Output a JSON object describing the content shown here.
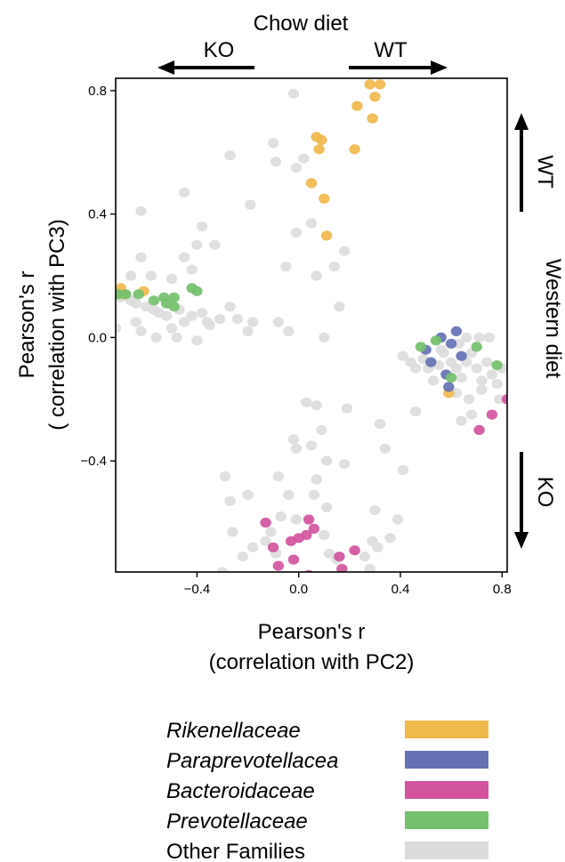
{
  "chart_data": {
    "type": "scatter",
    "xlabel": [
      "Pearson's r",
      "(correlation with PC2)"
    ],
    "ylabel": [
      "Pearson's r",
      "( correlation with PC3)"
    ],
    "xlim": [
      -0.72,
      0.82
    ],
    "ylim": [
      -0.76,
      0.84
    ],
    "x_ticks": [
      -0.4,
      0.0,
      0.4,
      0.8
    ],
    "y_ticks": [
      -0.4,
      0.0,
      0.4,
      0.8
    ],
    "x_tick_labels": [
      "−0.4",
      "0.0",
      "0.4",
      "0.8"
    ],
    "y_tick_labels": [
      "−0.4",
      "0.0",
      "0.4",
      "0.8"
    ],
    "grid": false,
    "legend_position": "bottom",
    "annotations": {
      "top_title": "Chow diet",
      "top_left_arrow_label": "KO",
      "top_right_arrow_label": "WT",
      "right_title": "Western diet",
      "right_up_arrow_label": "WT",
      "right_down_arrow_label": "KO"
    },
    "series": [
      {
        "name": "Rikenellaceae",
        "color": "#F0B94C",
        "italic": true,
        "points": [
          [
            0.28,
            0.82
          ],
          [
            0.32,
            0.82
          ],
          [
            0.3,
            0.78
          ],
          [
            0.23,
            0.75
          ],
          [
            0.29,
            0.71
          ],
          [
            0.07,
            0.65
          ],
          [
            0.09,
            0.64
          ],
          [
            0.08,
            0.61
          ],
          [
            0.22,
            0.61
          ],
          [
            0.05,
            0.5
          ],
          [
            0.1,
            0.45
          ],
          [
            0.11,
            0.33
          ],
          [
            -0.7,
            0.16
          ],
          [
            -0.61,
            0.15
          ],
          [
            -0.69,
            0.14
          ],
          [
            0.59,
            -0.18
          ]
        ]
      },
      {
        "name": "Paraprevotellacea",
        "color": "#6472B4",
        "italic": true,
        "points": [
          [
            0.5,
            -0.04
          ],
          [
            0.56,
            0.0
          ],
          [
            0.62,
            0.02
          ],
          [
            0.6,
            -0.02
          ],
          [
            0.64,
            -0.06
          ],
          [
            0.58,
            -0.12
          ],
          [
            0.59,
            -0.16
          ],
          [
            0.52,
            -0.08
          ]
        ]
      },
      {
        "name": "Bacteroidaceae",
        "color": "#D2549E",
        "italic": true,
        "points": [
          [
            -0.13,
            -0.6
          ],
          [
            0.04,
            -0.59
          ],
          [
            0.06,
            -0.62
          ],
          [
            0.03,
            -0.64
          ],
          [
            0.0,
            -0.65
          ],
          [
            -0.03,
            -0.66
          ],
          [
            -0.1,
            -0.68
          ],
          [
            -0.02,
            -0.72
          ],
          [
            0.16,
            -0.71
          ],
          [
            0.22,
            -0.69
          ],
          [
            -0.08,
            -0.74
          ],
          [
            0.04,
            -0.77
          ],
          [
            0.17,
            -0.75
          ],
          [
            0.76,
            -0.25
          ],
          [
            0.82,
            -0.2
          ],
          [
            0.71,
            -0.3
          ]
        ]
      },
      {
        "name": "Prevotellaceae",
        "color": "#74C06C",
        "italic": true,
        "points": [
          [
            -0.71,
            0.14
          ],
          [
            -0.68,
            0.14
          ],
          [
            -0.63,
            0.14
          ],
          [
            -0.57,
            0.12
          ],
          [
            -0.53,
            0.13
          ],
          [
            -0.52,
            0.11
          ],
          [
            -0.49,
            0.1
          ],
          [
            -0.49,
            0.13
          ],
          [
            -0.42,
            0.16
          ],
          [
            -0.4,
            0.15
          ],
          [
            0.48,
            -0.03
          ],
          [
            0.54,
            -0.01
          ],
          [
            0.6,
            -0.13
          ],
          [
            0.7,
            -0.03
          ],
          [
            0.78,
            -0.09
          ]
        ]
      },
      {
        "name": "Other Families",
        "color": "#DCDCDC",
        "italic": false,
        "points": [
          [
            -0.02,
            0.79
          ],
          [
            -0.1,
            0.63
          ],
          [
            -0.09,
            0.57
          ],
          [
            -0.27,
            0.59
          ],
          [
            -0.19,
            0.43
          ],
          [
            -0.45,
            0.47
          ],
          [
            -0.62,
            0.41
          ],
          [
            -0.38,
            0.36
          ],
          [
            -0.4,
            0.3
          ],
          [
            -0.33,
            0.3
          ],
          [
            -0.45,
            0.26
          ],
          [
            -0.62,
            0.26
          ],
          [
            -0.42,
            0.22
          ],
          [
            -0.5,
            0.19
          ],
          [
            -0.66,
            0.2
          ],
          [
            -0.58,
            0.2
          ],
          [
            -0.7,
            0.13
          ],
          [
            -0.66,
            0.12
          ],
          [
            -0.64,
            0.11
          ],
          [
            -0.6,
            0.1
          ],
          [
            -0.57,
            0.09
          ],
          [
            -0.55,
            0.08
          ],
          [
            -0.52,
            0.07
          ],
          [
            -0.47,
            0.09
          ],
          [
            -0.45,
            0.05
          ],
          [
            -0.42,
            0.07
          ],
          [
            -0.38,
            0.08
          ],
          [
            -0.36,
            0.05
          ],
          [
            -0.31,
            0.06
          ],
          [
            -0.27,
            0.1
          ],
          [
            -0.24,
            0.06
          ],
          [
            -0.2,
            0.02
          ],
          [
            -0.18,
            0.05
          ],
          [
            -0.08,
            0.05
          ],
          [
            -0.04,
            0.02
          ],
          [
            0.1,
            0.0
          ],
          [
            -0.62,
            0.02
          ],
          [
            -0.56,
            0.0
          ],
          [
            -0.48,
            0.0
          ],
          [
            -0.4,
            -0.01
          ],
          [
            -0.72,
            0.03
          ],
          [
            -0.64,
            0.05
          ],
          [
            -0.35,
            0.04
          ],
          [
            -0.5,
            0.03
          ],
          [
            -0.01,
            0.55
          ],
          [
            0.02,
            0.58
          ],
          [
            -0.01,
            0.34
          ],
          [
            0.05,
            0.37
          ],
          [
            0.18,
            0.28
          ],
          [
            0.14,
            0.23
          ],
          [
            -0.05,
            0.23
          ],
          [
            0.07,
            0.2
          ],
          [
            0.16,
            0.1
          ],
          [
            0.41,
            -0.06
          ],
          [
            0.44,
            -0.08
          ],
          [
            0.46,
            -0.1
          ],
          [
            0.49,
            -0.07
          ],
          [
            0.51,
            -0.1
          ],
          [
            0.53,
            -0.14
          ],
          [
            0.55,
            -0.09
          ],
          [
            0.57,
            -0.05
          ],
          [
            0.6,
            -0.08
          ],
          [
            0.62,
            -0.1
          ],
          [
            0.64,
            -0.13
          ],
          [
            0.66,
            -0.08
          ],
          [
            0.68,
            -0.05
          ],
          [
            0.7,
            -0.1
          ],
          [
            0.72,
            -0.14
          ],
          [
            0.74,
            -0.08
          ],
          [
            0.76,
            -0.12
          ],
          [
            0.78,
            -0.15
          ],
          [
            0.8,
            -0.1
          ],
          [
            0.63,
            -0.02
          ],
          [
            0.66,
            0.0
          ],
          [
            0.71,
            0.0
          ],
          [
            0.62,
            -0.18
          ],
          [
            0.67,
            -0.2
          ],
          [
            0.72,
            -0.17
          ],
          [
            0.64,
            -0.27
          ],
          [
            0.68,
            -0.25
          ],
          [
            0.56,
            -0.04
          ],
          [
            0.46,
            -0.24
          ],
          [
            0.75,
            0.0
          ],
          [
            0.79,
            -0.2
          ],
          [
            0.03,
            -0.21
          ],
          [
            0.07,
            -0.22
          ],
          [
            0.19,
            -0.23
          ],
          [
            0.09,
            -0.3
          ],
          [
            0.05,
            -0.35
          ],
          [
            0.11,
            -0.4
          ],
          [
            -0.02,
            -0.33
          ],
          [
            -0.01,
            -0.36
          ],
          [
            0.32,
            -0.28
          ],
          [
            0.34,
            -0.36
          ],
          [
            0.41,
            -0.43
          ],
          [
            0.18,
            -0.41
          ],
          [
            0.39,
            -0.59
          ],
          [
            0.36,
            -0.65
          ],
          [
            -0.29,
            -0.45
          ],
          [
            -0.27,
            -0.53
          ],
          [
            -0.2,
            -0.51
          ],
          [
            -0.08,
            -0.45
          ],
          [
            0.07,
            -0.46
          ],
          [
            -0.04,
            -0.51
          ],
          [
            0.06,
            -0.51
          ],
          [
            0.11,
            -0.55
          ],
          [
            -0.07,
            -0.58
          ],
          [
            -0.01,
            -0.59
          ],
          [
            0.3,
            -0.56
          ],
          [
            0.29,
            -0.66
          ],
          [
            -0.26,
            -0.63
          ],
          [
            -0.22,
            -0.71
          ],
          [
            -0.13,
            -0.66
          ],
          [
            -0.18,
            -0.68
          ],
          [
            -0.11,
            -0.63
          ],
          [
            -0.09,
            -0.7
          ],
          [
            0.1,
            -0.64
          ],
          [
            0.12,
            -0.7
          ],
          [
            0.15,
            -0.72
          ],
          [
            -0.3,
            -0.76
          ],
          [
            0.26,
            -0.71
          ],
          [
            0.31,
            -0.68
          ],
          [
            0.28,
            -0.75
          ]
        ]
      }
    ]
  }
}
